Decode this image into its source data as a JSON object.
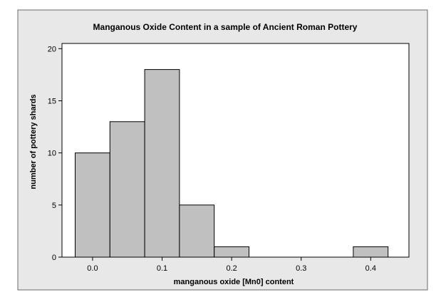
{
  "chart_data": {
    "type": "bar",
    "title": "Manganous Oxide Content in a sample of Ancient Roman Pottery",
    "xlabel": "manganous oxide [Mn0] content",
    "ylabel": "number of pottery shards",
    "bin_width": 0.05,
    "bins": [
      {
        "center": 0.0,
        "count": 10
      },
      {
        "center": 0.05,
        "count": 13
      },
      {
        "center": 0.1,
        "count": 18
      },
      {
        "center": 0.15,
        "count": 5
      },
      {
        "center": 0.2,
        "count": 1
      },
      {
        "center": 0.25,
        "count": 0
      },
      {
        "center": 0.3,
        "count": 0
      },
      {
        "center": 0.35,
        "count": 0
      },
      {
        "center": 0.4,
        "count": 1
      }
    ],
    "xlim": [
      -0.044,
      0.455
    ],
    "ylim": [
      0,
      20.5
    ],
    "xticks": [
      0.0,
      0.1,
      0.2,
      0.3,
      0.4
    ],
    "xtick_labels": [
      "0.0",
      "0.1",
      "0.2",
      "0.3",
      "0.4"
    ],
    "yticks": [
      0,
      5,
      10,
      15,
      20
    ],
    "ytick_labels": [
      "0",
      "5",
      "10",
      "15",
      "20"
    ],
    "grid": false,
    "colors": {
      "bar_fill": "#c0c0c0",
      "bar_stroke": "#000000",
      "plot_bg": "#ffffff",
      "frame_bg": "#e8e8e8"
    }
  }
}
